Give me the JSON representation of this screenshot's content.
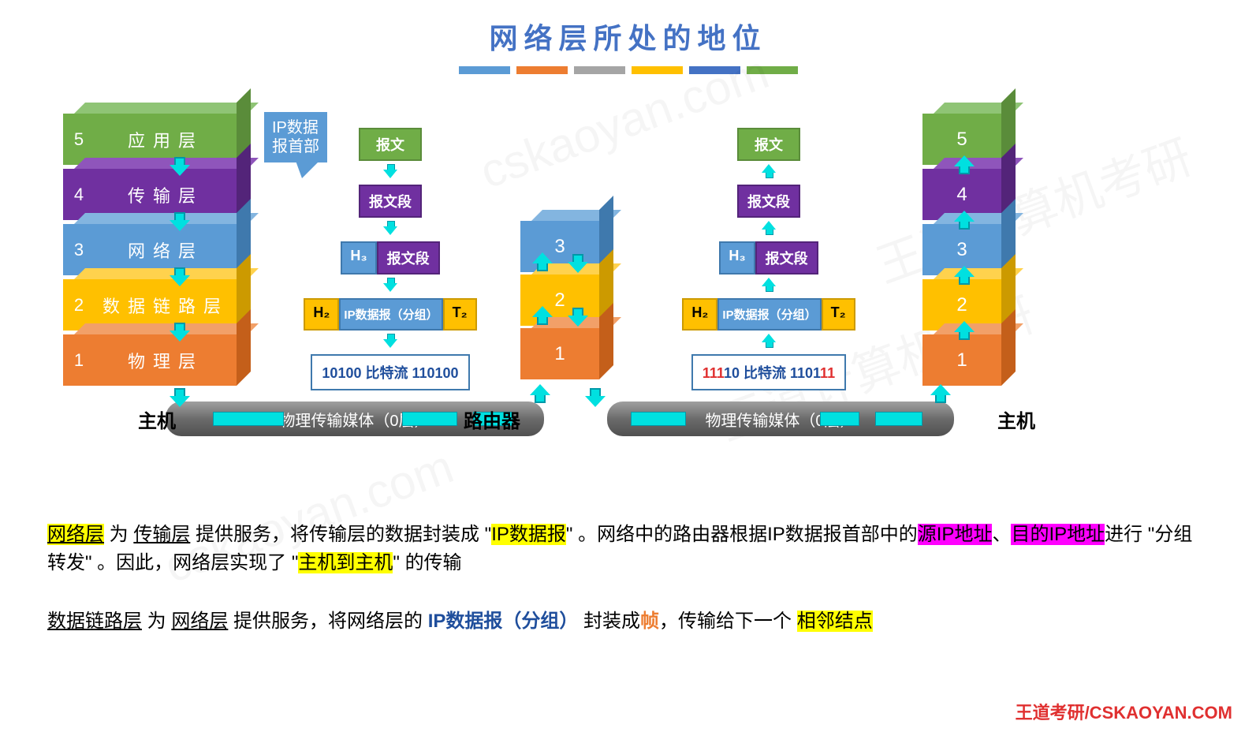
{
  "title": "网络层所处的地位",
  "title_colors": [
    "#5b9bd5",
    "#ed7d31",
    "#a5a5a5",
    "#ffc000",
    "#4472c4",
    "#70ad47"
  ],
  "layers": {
    "colors": {
      "l5": {
        "front": "#70ad47",
        "top": "#8fc475",
        "side": "#5a8c3a"
      },
      "l4": {
        "front": "#7030a0",
        "top": "#8f55bb",
        "side": "#532479"
      },
      "l3": {
        "front": "#5b9bd5",
        "top": "#83b5e0",
        "side": "#3f79ad"
      },
      "l2": {
        "front": "#ffc000",
        "top": "#ffd24d",
        "side": "#cc9a00"
      },
      "l1": {
        "front": "#ed7d31",
        "top": "#f2a068",
        "side": "#c45f1a"
      }
    },
    "left": [
      {
        "n": "5",
        "name": "应用层",
        "key": "l5"
      },
      {
        "n": "4",
        "name": "传输层",
        "key": "l4"
      },
      {
        "n": "3",
        "name": "网络层",
        "key": "l3"
      },
      {
        "n": "2",
        "name": "数据链路层",
        "key": "l2"
      },
      {
        "n": "1",
        "name": "物理层",
        "key": "l1"
      }
    ],
    "router": [
      {
        "n": "3",
        "key": "l3"
      },
      {
        "n": "2",
        "key": "l2"
      },
      {
        "n": "1",
        "key": "l1"
      }
    ],
    "right": [
      {
        "n": "5",
        "key": "l5"
      },
      {
        "n": "4",
        "key": "l4"
      },
      {
        "n": "3",
        "key": "l3"
      },
      {
        "n": "2",
        "key": "l2"
      },
      {
        "n": "1",
        "key": "l1"
      }
    ]
  },
  "callout": "IP数据\n报首部",
  "packets": {
    "left": {
      "l5": "报文",
      "l4": "报文段",
      "h3": "H₃",
      "l3": "报文段",
      "h2": "H₂",
      "l2_full": "IP数据报（分组）",
      "t2": "T₂",
      "bits": "10100 比特流 110100"
    },
    "right": {
      "l5": "报文",
      "l4": "报文段",
      "h3": "H₃",
      "l3": "报文段",
      "h2": "H₂",
      "l2_full": "IP数据报（分组）",
      "t2": "T₂",
      "bits_red": "111",
      "bits_mid": "10 比特流 1101",
      "bits_red2": "11"
    },
    "colors": {
      "green": "#70ad47",
      "purple": "#7030a0",
      "blue_h": "#5b9bd5",
      "blue_pkt": "#5b9bd5",
      "orange": "#ffc000",
      "white_bits": "#ffffff",
      "bits_text": "#1f4e9c",
      "bits_red": "#e03030"
    }
  },
  "nodes": {
    "host": "主机",
    "router": "路由器",
    "host2": "主机"
  },
  "pipe_text": "物理传输媒体（0层）",
  "explain1": {
    "a": "网络层",
    "b": " 为 ",
    "c": "传输层",
    "d": " 提供服务，将传输层的数据封装成 \"",
    "e": "IP数据报",
    "f": "\" 。网络中的路由器根据IP数据报首部中的",
    "g": "源IP地址",
    "h": "、",
    "i": "目的IP地址",
    "j": "进行 \"分组转发\" 。因此，网络层实现了 \"",
    "k": "主机到主机",
    "l": "\" 的传输"
  },
  "explain2": {
    "a": "数据链路层",
    "b": " 为 ",
    "c": "网络层",
    "d": " 提供服务，将网络层的 ",
    "e": "IP数据报（分组）",
    "f": "   封装成",
    "g": "帧",
    "h": "，传输给下一个 ",
    "i": "相邻结点"
  },
  "footer": "王道考研/CSKAOYAN.COM"
}
